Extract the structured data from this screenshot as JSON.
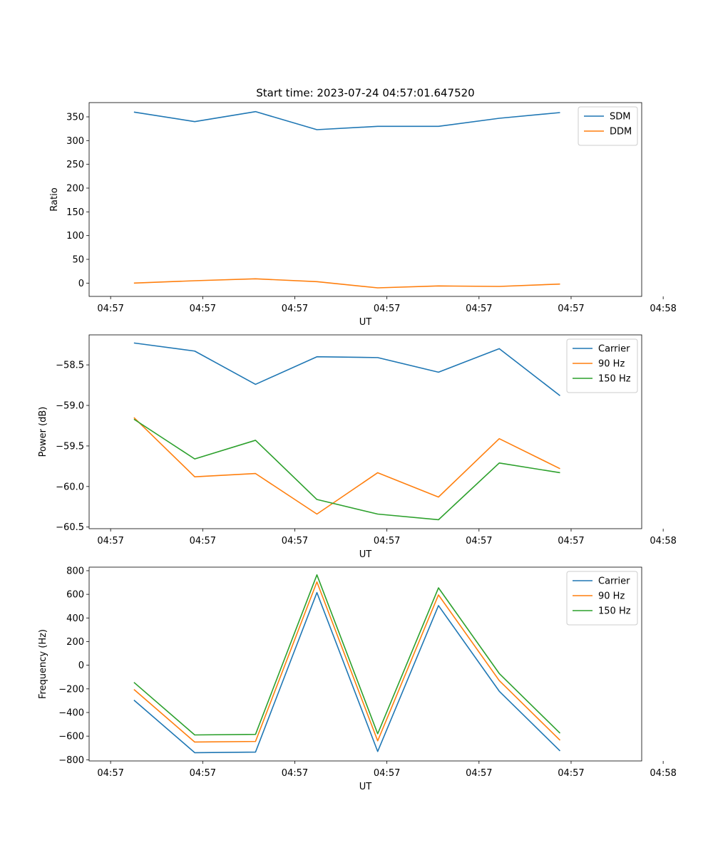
{
  "figure_title": "Start time: 2023-07-24 04:57:01.647520",
  "chart_data": [
    {
      "type": "line",
      "ylabel": "Ratio",
      "xlabel": "UT",
      "xlim": [
        -0.35,
        8.65
      ],
      "ylim": [
        -28,
        380
      ],
      "xticks": [
        0,
        1.5,
        3,
        4.5,
        6,
        7.5,
        9
      ],
      "xtick_labels": [
        "04:57",
        "04:57",
        "04:57",
        "04:57",
        "04:57",
        "04:57",
        "04:58"
      ],
      "yticks": [
        0,
        50,
        100,
        150,
        200,
        250,
        300,
        350
      ],
      "ytick_labels": [
        "0",
        "50",
        "100",
        "150",
        "200",
        "250",
        "300",
        "350"
      ],
      "x": [
        0.38,
        1.37,
        2.36,
        3.36,
        4.35,
        5.34,
        6.33,
        7.32
      ],
      "legend_position": "top-right",
      "series": [
        {
          "name": "SDM",
          "color": "#1f77b4",
          "values": [
            360,
            340,
            361,
            323,
            330,
            330,
            347,
            359
          ]
        },
        {
          "name": "DDM",
          "color": "#ff7f0e",
          "values": [
            0,
            5,
            9,
            3,
            -10,
            -6,
            -7,
            -2
          ]
        }
      ]
    },
    {
      "type": "line",
      "ylabel": "Power (dB)",
      "xlabel": "UT",
      "xlim": [
        -0.35,
        8.65
      ],
      "ylim": [
        -60.52,
        -58.13
      ],
      "xticks": [
        0,
        1.5,
        3,
        4.5,
        6,
        7.5,
        9
      ],
      "xtick_labels": [
        "04:57",
        "04:57",
        "04:57",
        "04:57",
        "04:57",
        "04:57",
        "04:58"
      ],
      "yticks": [
        -60.5,
        -60.0,
        -59.5,
        -59.0,
        -58.5
      ],
      "ytick_labels": [
        "−60.5",
        "−60.0",
        "−59.5",
        "−59.0",
        "−58.5"
      ],
      "x": [
        0.38,
        1.37,
        2.36,
        3.36,
        4.35,
        5.34,
        6.33,
        7.32
      ],
      "legend_position": "top-right",
      "series": [
        {
          "name": "Carrier",
          "color": "#1f77b4",
          "values": [
            -58.23,
            -58.33,
            -58.74,
            -58.4,
            -58.41,
            -58.59,
            -58.3,
            -58.88
          ]
        },
        {
          "name": "90 Hz",
          "color": "#ff7f0e",
          "values": [
            -59.15,
            -59.88,
            -59.84,
            -60.34,
            -59.83,
            -60.13,
            -59.41,
            -59.78
          ]
        },
        {
          "name": "150 Hz",
          "color": "#2ca02c",
          "values": [
            -59.17,
            -59.66,
            -59.43,
            -60.16,
            -60.34,
            -60.41,
            -59.71,
            -59.83
          ]
        }
      ]
    },
    {
      "type": "line",
      "ylabel": "Frequency (Hz)",
      "xlabel": "UT",
      "xlim": [
        -0.35,
        8.65
      ],
      "ylim": [
        -810,
        830
      ],
      "xticks": [
        0,
        1.5,
        3,
        4.5,
        6,
        7.5,
        9
      ],
      "xtick_labels": [
        "04:57",
        "04:57",
        "04:57",
        "04:57",
        "04:57",
        "04:57",
        "04:58"
      ],
      "yticks": [
        -800,
        -600,
        -400,
        -200,
        0,
        200,
        400,
        600,
        800
      ],
      "ytick_labels": [
        "−800",
        "−600",
        "−400",
        "−200",
        "0",
        "200",
        "400",
        "600",
        "800"
      ],
      "x": [
        0.38,
        1.37,
        2.36,
        3.36,
        4.35,
        5.34,
        6.33,
        7.32
      ],
      "legend_position": "top-right",
      "series": [
        {
          "name": "Carrier",
          "color": "#1f77b4",
          "values": [
            -295,
            -740,
            -735,
            615,
            -730,
            505,
            -220,
            -725
          ]
        },
        {
          "name": "90 Hz",
          "color": "#ff7f0e",
          "values": [
            -205,
            -650,
            -645,
            705,
            -640,
            595,
            -130,
            -635
          ]
        },
        {
          "name": "150 Hz",
          "color": "#2ca02c",
          "values": [
            -145,
            -590,
            -585,
            765,
            -580,
            655,
            -70,
            -575
          ]
        }
      ]
    }
  ]
}
